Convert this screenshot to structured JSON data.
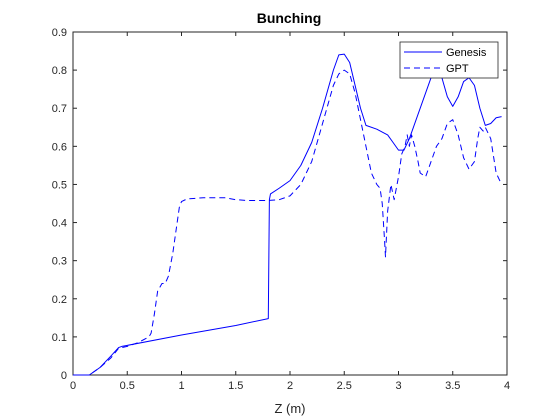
{
  "chart_data": {
    "type": "line",
    "title": "Bunching",
    "xlabel": "Z (m)",
    "ylabel": "",
    "xlim": [
      0,
      4
    ],
    "ylim": [
      0,
      0.9
    ],
    "xticks": [
      0,
      0.5,
      1,
      1.5,
      2,
      2.5,
      3,
      3.5,
      4
    ],
    "yticks": [
      0,
      0.1,
      0.2,
      0.3,
      0.4,
      0.5,
      0.6,
      0.7,
      0.8,
      0.9
    ],
    "grid": false,
    "legend_position": "top-right",
    "line_color": "#0000ff",
    "series": [
      {
        "name": "Genesis",
        "style": "solid",
        "x": [
          0,
          0.15,
          0.25,
          0.35,
          0.42,
          0.45,
          1.0,
          1.5,
          1.8,
          1.81,
          1.82,
          1.9,
          2.0,
          2.1,
          2.2,
          2.3,
          2.4,
          2.45,
          2.5,
          2.55,
          2.6,
          2.65,
          2.7,
          2.8,
          2.9,
          2.95,
          3.0,
          3.05,
          3.1,
          3.2,
          3.3,
          3.35,
          3.4,
          3.45,
          3.5,
          3.55,
          3.6,
          3.65,
          3.7,
          3.75,
          3.8,
          3.85,
          3.9,
          3.95
        ],
        "y": [
          0,
          0.0,
          0.02,
          0.05,
          0.072,
          0.075,
          0.105,
          0.13,
          0.148,
          0.46,
          0.475,
          0.49,
          0.51,
          0.55,
          0.61,
          0.7,
          0.8,
          0.84,
          0.842,
          0.82,
          0.76,
          0.7,
          0.655,
          0.645,
          0.63,
          0.61,
          0.59,
          0.59,
          0.62,
          0.7,
          0.78,
          0.8,
          0.78,
          0.73,
          0.705,
          0.73,
          0.77,
          0.78,
          0.76,
          0.7,
          0.655,
          0.66,
          0.675,
          0.678
        ]
      },
      {
        "name": "GPT",
        "style": "dashed",
        "x": [
          0,
          0.15,
          0.25,
          0.35,
          0.42,
          0.5,
          0.6,
          0.7,
          0.72,
          0.75,
          0.78,
          0.82,
          0.85,
          0.88,
          0.92,
          0.95,
          0.98,
          1.0,
          1.05,
          1.2,
          1.4,
          1.5,
          1.6,
          1.8,
          1.9,
          2.0,
          2.1,
          2.2,
          2.3,
          2.4,
          2.45,
          2.5,
          2.55,
          2.6,
          2.65,
          2.7,
          2.75,
          2.8,
          2.83,
          2.85,
          2.87,
          2.88,
          2.9,
          2.93,
          2.96,
          3.0,
          3.03,
          3.06,
          3.08,
          3.1,
          3.12,
          3.15,
          3.18,
          3.2,
          3.25,
          3.3,
          3.35,
          3.4,
          3.45,
          3.5,
          3.55,
          3.6,
          3.65,
          3.7,
          3.73,
          3.75,
          3.78,
          3.8,
          3.85,
          3.9,
          3.95
        ],
        "y": [
          0,
          0.0,
          0.02,
          0.045,
          0.07,
          0.075,
          0.085,
          0.1,
          0.11,
          0.16,
          0.22,
          0.24,
          0.24,
          0.26,
          0.32,
          0.38,
          0.44,
          0.455,
          0.462,
          0.465,
          0.465,
          0.46,
          0.458,
          0.458,
          0.46,
          0.47,
          0.5,
          0.56,
          0.66,
          0.76,
          0.79,
          0.8,
          0.79,
          0.74,
          0.67,
          0.6,
          0.53,
          0.5,
          0.49,
          0.45,
          0.36,
          0.31,
          0.43,
          0.5,
          0.46,
          0.52,
          0.58,
          0.6,
          0.63,
          0.6,
          0.63,
          0.6,
          0.56,
          0.53,
          0.52,
          0.56,
          0.6,
          0.62,
          0.66,
          0.67,
          0.63,
          0.57,
          0.54,
          0.56,
          0.62,
          0.65,
          0.64,
          0.65,
          0.62,
          0.53,
          0.5
        ]
      }
    ]
  }
}
